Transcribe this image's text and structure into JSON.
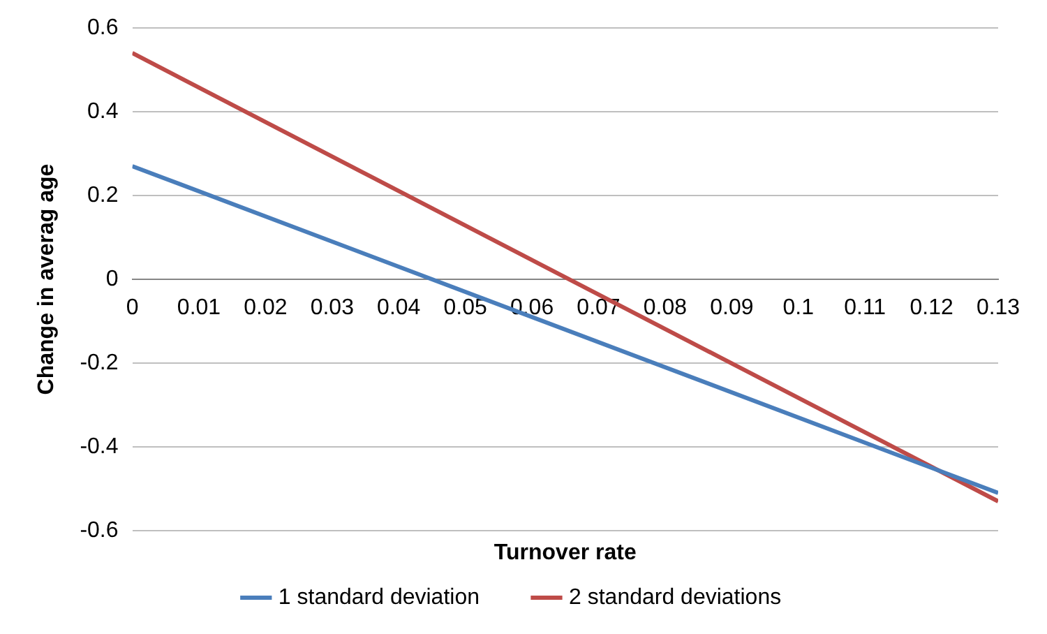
{
  "chart_data": {
    "type": "line",
    "xlabel": "Turnover rate",
    "ylabel": "Change in averag age",
    "x": [
      0,
      0.13
    ],
    "series": [
      {
        "name": "1 standard deviation",
        "color": "#4a7ebb",
        "values": [
          0.27,
          -0.51
        ]
      },
      {
        "name": "2 standard deviations",
        "color": "#be4b48",
        "values": [
          0.54,
          -0.53
        ]
      }
    ],
    "xlim": [
      0,
      0.13
    ],
    "xticks": [
      0,
      0.01,
      0.02,
      0.03,
      0.04,
      0.05,
      0.06,
      0.07,
      0.08,
      0.09,
      0.1,
      0.11,
      0.12,
      0.13
    ],
    "ylim": [
      -0.6,
      0.6
    ],
    "yticks": [
      -0.6,
      -0.4,
      -0.2,
      0,
      0.2,
      0.4,
      0.6
    ],
    "grid": "y",
    "legend": "bottom",
    "marker": "none",
    "line_style": "solid"
  }
}
